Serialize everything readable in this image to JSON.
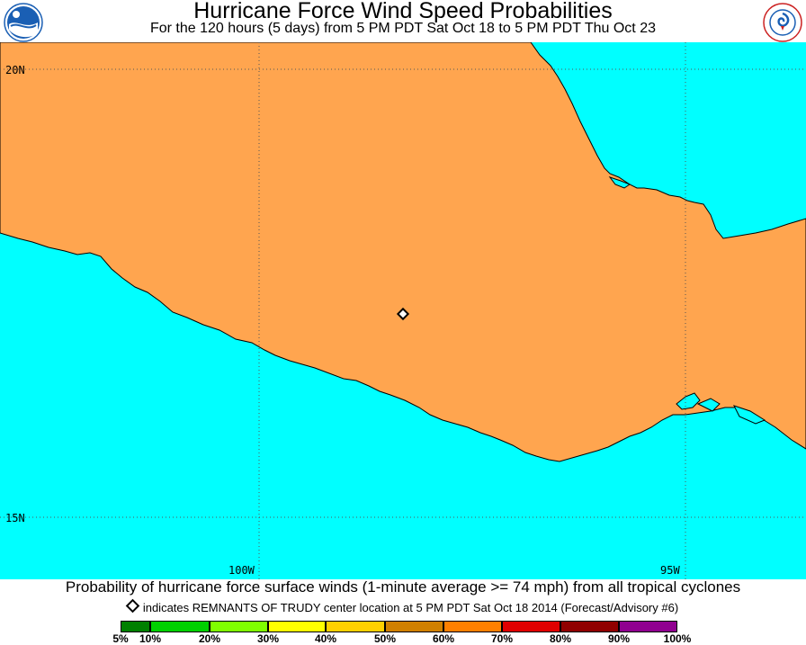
{
  "header": {
    "title": "Hurricane Force Wind Speed Probabilities",
    "subtitle": "For the 120 hours (5 days) from 5 PM PDT Sat Oct 18 to 5 PM PDT Thu Oct 23",
    "left_logo": {
      "name": "NOAA",
      "icon": "noaa-logo-icon",
      "color": "#1a5fb4"
    },
    "right_logo": {
      "name": "NATIONAL WEATHER SERVICE",
      "icon": "nws-logo-icon",
      "color": "#cc2222"
    }
  },
  "map": {
    "colors": {
      "land": "#ffa54f",
      "water": "#00ffff",
      "grid": "#555555"
    },
    "lat_labels": [
      "20N",
      "15N"
    ],
    "lon_labels": [
      "100W",
      "95W"
    ],
    "storm_marker": {
      "icon": "storm-center-diamond-icon",
      "lat": 17.0,
      "lon": -98.3
    }
  },
  "caption": "Probability of hurricane force surface winds (1-minute average >= 74 mph) from all tropical cyclones",
  "note": "indicates REMNANTS OF TRUDY center location at 5 PM PDT Sat Oct 18 2014 (Forecast/Advisory #6)",
  "scale": {
    "colors": [
      "#008000",
      "#00d000",
      "#80ff00",
      "#ffff00",
      "#ffd000",
      "#d08000",
      "#ff8000",
      "#e00000",
      "#900000",
      "#900090"
    ],
    "labels": [
      "5%",
      "10%",
      "20%",
      "30%",
      "40%",
      "50%",
      "60%",
      "70%",
      "80%",
      "90%",
      "100%"
    ]
  }
}
